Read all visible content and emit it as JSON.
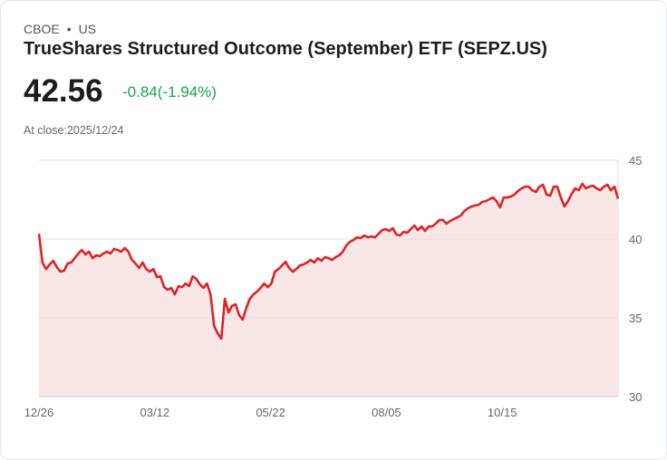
{
  "header": {
    "exchange": "CBOE",
    "separator": "•",
    "country": "US",
    "title": "TrueShares Structured Outcome (September) ETF (SEPZ.US)",
    "price": "42.56",
    "change": "-0.84(-1.94%)",
    "close_label": "At close:2025/12/24"
  },
  "colors": {
    "line": "#dd2326",
    "fill": "#f9e6e6",
    "change": "#1aa34a"
  },
  "chart_data": {
    "type": "area",
    "title": "",
    "xlabel": "",
    "ylabel": "",
    "ylim": [
      30,
      45
    ],
    "y_ticks": [
      "45",
      "40",
      "35",
      "30"
    ],
    "y_tick_values": [
      45,
      40,
      35,
      30
    ],
    "x_ticks": [
      "12/26",
      "03/12",
      "05/22",
      "08/05",
      "10/15"
    ],
    "x_tick_fractions": [
      0,
      0.2,
      0.4,
      0.6,
      0.8
    ],
    "grid": true,
    "values": [
      40.34,
      38.51,
      38.1,
      38.39,
      38.62,
      38.22,
      37.93,
      37.99,
      38.45,
      38.51,
      38.79,
      39.08,
      39.31,
      39.02,
      39.2,
      38.79,
      38.97,
      38.91,
      39.08,
      39.2,
      39.08,
      39.37,
      39.31,
      39.2,
      39.43,
      39.2,
      38.68,
      38.45,
      38.16,
      38.51,
      38.1,
      37.93,
      38.1,
      37.59,
      37.64,
      36.95,
      36.78,
      36.9,
      36.49,
      37.01,
      36.95,
      37.18,
      37.01,
      37.64,
      37.47,
      37.13,
      36.9,
      37.18,
      36.49,
      34.48,
      34.02,
      33.68,
      36.21,
      35.34,
      35.75,
      35.86,
      35.17,
      34.89,
      35.63,
      36.21,
      36.49,
      36.67,
      36.9,
      37.18,
      36.95,
      37.18,
      37.93,
      38.1,
      38.33,
      38.56,
      38.16,
      37.93,
      38.1,
      38.33,
      38.39,
      38.51,
      38.68,
      38.51,
      38.79,
      38.62,
      38.85,
      38.79,
      38.68,
      38.85,
      38.97,
      39.2,
      39.6,
      39.83,
      39.94,
      40.11,
      40.06,
      40.23,
      40.11,
      40.17,
      40.11,
      40.34,
      40.57,
      40.63,
      40.52,
      40.69,
      40.29,
      40.23,
      40.46,
      40.4,
      40.63,
      40.86,
      40.57,
      40.8,
      40.52,
      40.8,
      40.8,
      40.98,
      41.21,
      41.21,
      40.98,
      41.15,
      41.26,
      41.38,
      41.49,
      41.78,
      41.95,
      42.07,
      42.13,
      42.18,
      42.36,
      42.41,
      42.53,
      42.64,
      42.41,
      42.01,
      42.64,
      42.64,
      42.7,
      42.82,
      43.05,
      43.22,
      43.33,
      43.33,
      43.1,
      42.99,
      43.33,
      43.45,
      42.82,
      42.76,
      43.33,
      43.33,
      42.64,
      42.07,
      42.41,
      42.87,
      43.22,
      43.1,
      43.51,
      43.22,
      43.33,
      43.39,
      43.22,
      43.1,
      43.33,
      43.45,
      43.1,
      43.33,
      42.56
    ]
  }
}
